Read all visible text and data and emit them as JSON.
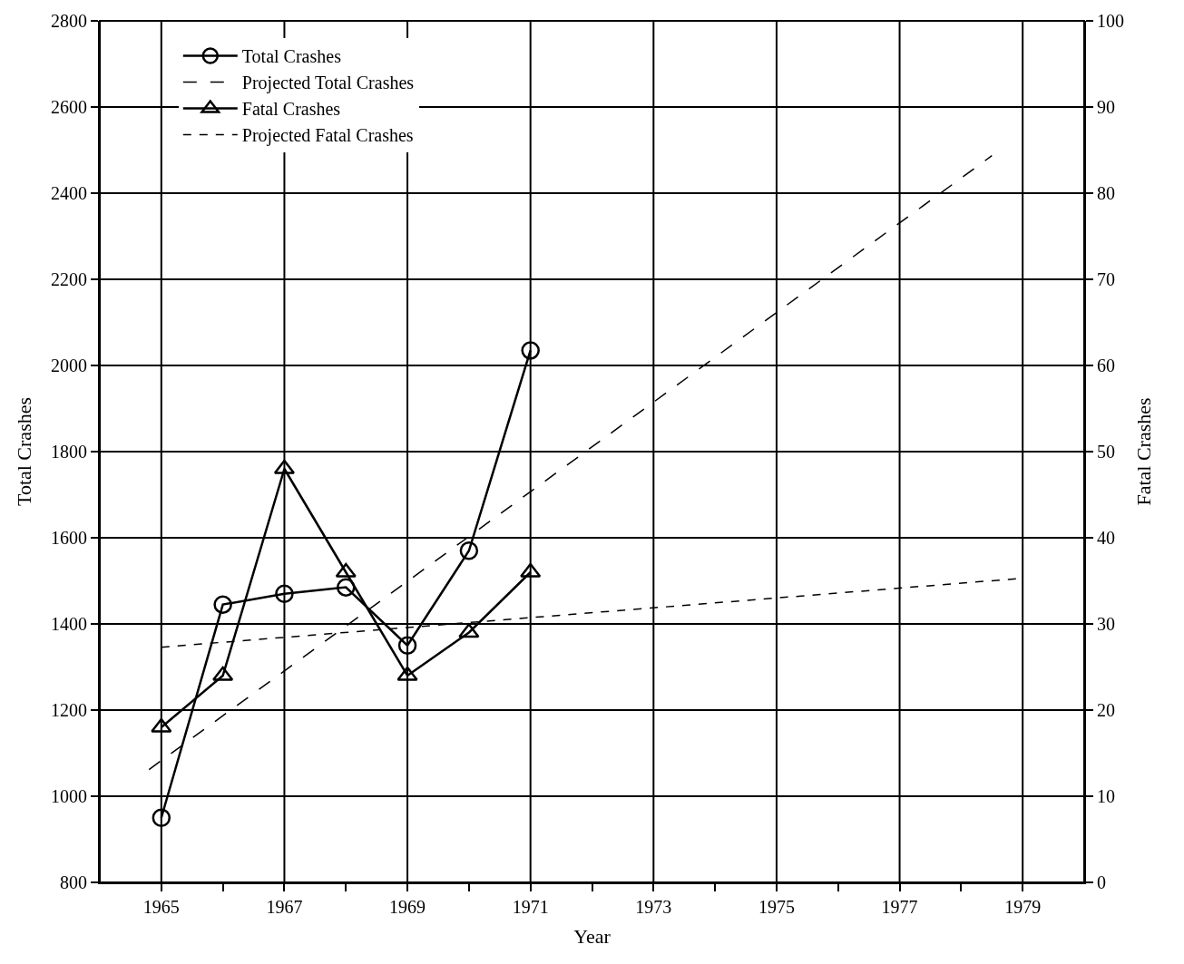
{
  "chart_data": {
    "type": "line",
    "xlabel": "Year",
    "ylabel": "Total Crashes",
    "y2label": "Fatal Crashes",
    "xlim": [
      1964,
      1980
    ],
    "xticks": [
      1965,
      {
        "value": 1966,
        "label": null
      },
      1967,
      {
        "value": 1968,
        "label": null
      },
      1969,
      {
        "value": 1970,
        "label": null
      },
      1971,
      {
        "value": 1972,
        "label": null
      },
      1973,
      {
        "value": 1974,
        "label": null
      },
      1975,
      {
        "value": 1976,
        "label": null
      },
      1977,
      {
        "value": 1978,
        "label": null
      },
      1979
    ],
    "ylim": [
      800,
      2800
    ],
    "yticks": [
      800,
      1000,
      1200,
      1400,
      1600,
      1800,
      2000,
      2200,
      2400,
      2600,
      2800
    ],
    "y2lim": [
      0,
      100
    ],
    "y2ticks": [
      0,
      10,
      20,
      30,
      40,
      50,
      60,
      70,
      80,
      90,
      100
    ],
    "grid": true,
    "legend": "top left",
    "series": [
      {
        "name": "Total Crashes",
        "color": "#000000",
        "x": [
          1965,
          1966,
          1967,
          1968,
          1969,
          1970,
          1971
        ],
        "values": [
          950,
          1445,
          1470,
          1485,
          1350,
          1570,
          2035
        ],
        "marker": "circle",
        "line_style": "solid"
      },
      {
        "name": "Projected Total Crashes",
        "color": "#000000",
        "x": [
          1964.8,
          1978.5
        ],
        "values": [
          1062,
          2487
        ],
        "marker": "none",
        "line_style": "dashed"
      },
      {
        "name": "Fatal Crashes",
        "color": "#000000",
        "axis": "y2",
        "x": [
          1965,
          1966,
          1967,
          1968,
          1969,
          1970,
          1971
        ],
        "values": [
          18,
          24,
          48,
          36,
          24,
          29,
          36
        ],
        "marker": "triangle",
        "line_style": "solid"
      },
      {
        "name": "Projected Fatal Crashes",
        "color": "#000000",
        "axis": "y2",
        "x": [
          1965,
          1979
        ],
        "values": [
          27.3,
          35.3
        ],
        "marker": "none",
        "line_style": "dotted"
      }
    ]
  }
}
